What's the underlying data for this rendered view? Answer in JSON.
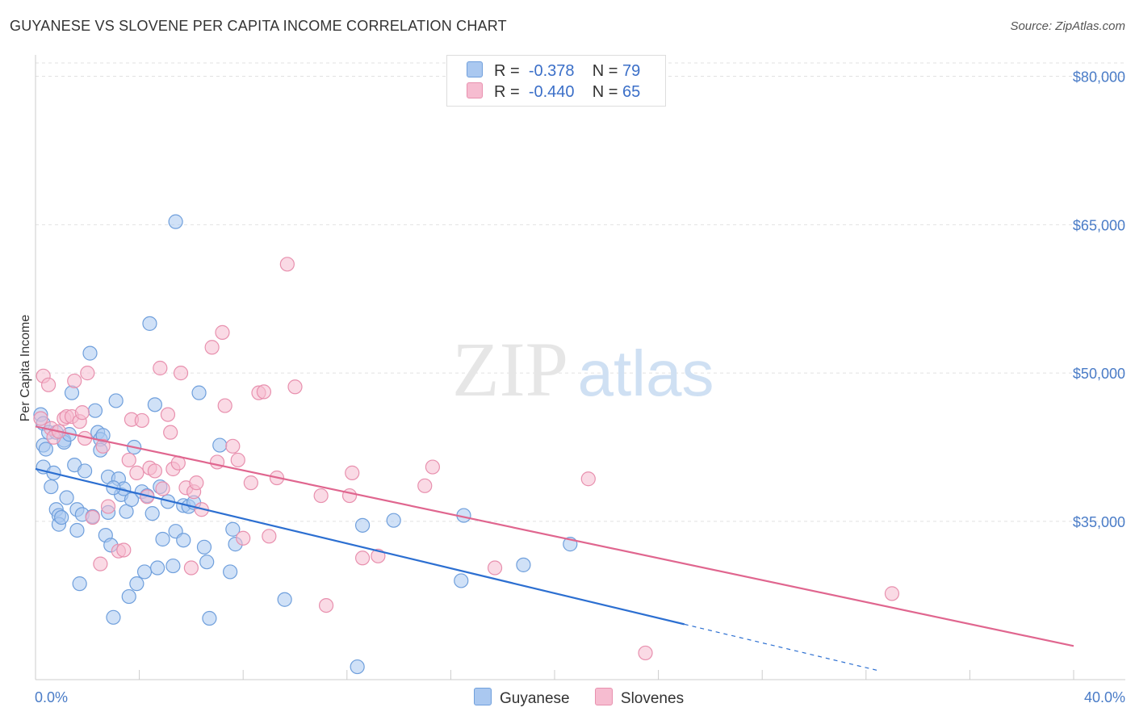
{
  "title": "GUYANESE VS SLOVENE PER CAPITA INCOME CORRELATION CHART",
  "source": "Source: ZipAtlas.com",
  "watermark": {
    "zip": "ZIP",
    "atlas": "atlas"
  },
  "legend_stats": [
    {
      "r_label": "R =",
      "r_value": "-0.378",
      "n_label": "N =",
      "n_value": "79"
    },
    {
      "r_label": "R =",
      "r_value": "-0.440",
      "n_label": "N =",
      "n_value": "65"
    }
  ],
  "bottom_legend": [
    "Guyanese",
    "Slovenes"
  ],
  "colors": {
    "guyanese_fill": "#aac8f0",
    "guyanese_stroke": "#6f9fdc",
    "guyanese_line": "#2c6fd1",
    "slovenes_fill": "#f6bcd0",
    "slovenes_stroke": "#e890ae",
    "slovenes_line": "#e0668f",
    "tick_text": "#4a7cc7",
    "grid": "#e2e2e2"
  },
  "chart_data": {
    "type": "scatter",
    "title": "GUYANESE VS SLOVENE PER CAPITA INCOME CORRELATION CHART",
    "xlabel": "",
    "ylabel": "Per Capita Income",
    "xlim": [
      0,
      40
    ],
    "ylim": [
      19000,
      82000
    ],
    "x_tick_labels": [
      "0.0%",
      "40.0%"
    ],
    "y_ticks": [
      35000,
      50000,
      65000,
      80000
    ],
    "y_tick_labels": [
      "$35,000",
      "$50,000",
      "$65,000",
      "$80,000"
    ],
    "series": [
      {
        "name": "Guyanese",
        "r": -0.378,
        "n": 79,
        "trend": {
          "x0": 0,
          "y0": 40300,
          "x1": 25,
          "y1": 24600,
          "dash_to_x": 32.5,
          "dash_to_y": 19900
        },
        "points": [
          [
            0.2,
            45800
          ],
          [
            0.3,
            44900
          ],
          [
            0.3,
            42700
          ],
          [
            0.4,
            42300
          ],
          [
            0.3,
            40500
          ],
          [
            0.5,
            44000
          ],
          [
            0.6,
            38500
          ],
          [
            0.7,
            39900
          ],
          [
            0.8,
            36200
          ],
          [
            0.9,
            35600
          ],
          [
            0.9,
            34700
          ],
          [
            1.0,
            35400
          ],
          [
            1.1,
            43200
          ],
          [
            1.1,
            43000
          ],
          [
            1.3,
            43800
          ],
          [
            1.2,
            37400
          ],
          [
            1.5,
            40700
          ],
          [
            1.6,
            36200
          ],
          [
            1.6,
            34100
          ],
          [
            1.7,
            28700
          ],
          [
            1.8,
            35700
          ],
          [
            1.9,
            40100
          ],
          [
            2.1,
            52000
          ],
          [
            2.2,
            35500
          ],
          [
            2.3,
            46200
          ],
          [
            2.4,
            44000
          ],
          [
            2.5,
            43300
          ],
          [
            2.5,
            42200
          ],
          [
            2.6,
            43700
          ],
          [
            2.7,
            33600
          ],
          [
            2.8,
            39500
          ],
          [
            2.8,
            35900
          ],
          [
            2.9,
            32600
          ],
          [
            3.0,
            25300
          ],
          [
            3.1,
            47200
          ],
          [
            3.2,
            39300
          ],
          [
            3.3,
            37700
          ],
          [
            3.4,
            38300
          ],
          [
            3.5,
            36000
          ],
          [
            3.6,
            27400
          ],
          [
            3.7,
            37200
          ],
          [
            3.8,
            42500
          ],
          [
            3.9,
            28700
          ],
          [
            4.1,
            38000
          ],
          [
            4.2,
            29900
          ],
          [
            4.3,
            37600
          ],
          [
            4.4,
            55000
          ],
          [
            4.5,
            35800
          ],
          [
            4.6,
            46800
          ],
          [
            4.7,
            30300
          ],
          [
            4.8,
            38500
          ],
          [
            4.9,
            33200
          ],
          [
            5.1,
            37000
          ],
          [
            5.3,
            30500
          ],
          [
            5.4,
            34000
          ],
          [
            5.4,
            65300
          ],
          [
            5.7,
            36600
          ],
          [
            5.7,
            33100
          ],
          [
            5.9,
            36500
          ],
          [
            6.1,
            36900
          ],
          [
            6.3,
            48000
          ],
          [
            6.5,
            32400
          ],
          [
            6.6,
            30900
          ],
          [
            6.7,
            25200
          ],
          [
            7.1,
            42700
          ],
          [
            7.5,
            29900
          ],
          [
            7.6,
            34200
          ],
          [
            7.7,
            32700
          ],
          [
            9.6,
            27100
          ],
          [
            12.4,
            20300
          ],
          [
            12.6,
            34600
          ],
          [
            13.8,
            35100
          ],
          [
            16.4,
            29000
          ],
          [
            16.5,
            35600
          ],
          [
            18.8,
            30600
          ],
          [
            20.6,
            32700
          ],
          [
            1.4,
            48000
          ],
          [
            0.8,
            44000
          ],
          [
            3.0,
            38400
          ]
        ]
      },
      {
        "name": "Slovenes",
        "r": -0.44,
        "n": 65,
        "trend": {
          "x0": 0,
          "y0": 44600,
          "x1": 40,
          "y1": 22400
        },
        "points": [
          [
            0.2,
            45400
          ],
          [
            0.3,
            49700
          ],
          [
            0.5,
            48800
          ],
          [
            0.6,
            44400
          ],
          [
            0.7,
            43500
          ],
          [
            0.9,
            44100
          ],
          [
            1.1,
            45400
          ],
          [
            1.2,
            45600
          ],
          [
            1.4,
            45600
          ],
          [
            1.5,
            49200
          ],
          [
            1.7,
            45100
          ],
          [
            1.8,
            46000
          ],
          [
            1.9,
            43400
          ],
          [
            2.0,
            50000
          ],
          [
            2.2,
            35400
          ],
          [
            2.5,
            30700
          ],
          [
            2.6,
            42600
          ],
          [
            2.8,
            36500
          ],
          [
            3.2,
            32000
          ],
          [
            3.4,
            32100
          ],
          [
            3.6,
            41200
          ],
          [
            3.7,
            45300
          ],
          [
            3.9,
            39900
          ],
          [
            4.1,
            45200
          ],
          [
            4.3,
            37500
          ],
          [
            4.4,
            40400
          ],
          [
            4.6,
            40100
          ],
          [
            4.8,
            50500
          ],
          [
            4.9,
            38300
          ],
          [
            5.1,
            45800
          ],
          [
            5.2,
            44000
          ],
          [
            5.3,
            40300
          ],
          [
            5.5,
            40900
          ],
          [
            5.6,
            50000
          ],
          [
            5.8,
            38400
          ],
          [
            6.0,
            30300
          ],
          [
            6.1,
            38000
          ],
          [
            6.2,
            38900
          ],
          [
            6.4,
            36200
          ],
          [
            6.8,
            52600
          ],
          [
            7.0,
            41000
          ],
          [
            7.2,
            54100
          ],
          [
            7.3,
            46700
          ],
          [
            7.6,
            42600
          ],
          [
            7.8,
            41200
          ],
          [
            8.0,
            33300
          ],
          [
            8.3,
            38900
          ],
          [
            8.6,
            48000
          ],
          [
            8.8,
            48100
          ],
          [
            9.0,
            33500
          ],
          [
            9.3,
            39400
          ],
          [
            9.7,
            61000
          ],
          [
            10.0,
            48600
          ],
          [
            11.0,
            37600
          ],
          [
            11.2,
            26500
          ],
          [
            12.1,
            37600
          ],
          [
            12.2,
            39900
          ],
          [
            12.6,
            31300
          ],
          [
            13.2,
            31500
          ],
          [
            15.0,
            38600
          ],
          [
            15.3,
            40500
          ],
          [
            17.7,
            30300
          ],
          [
            21.3,
            39300
          ],
          [
            23.5,
            21700
          ],
          [
            33.0,
            27700
          ]
        ]
      }
    ]
  }
}
